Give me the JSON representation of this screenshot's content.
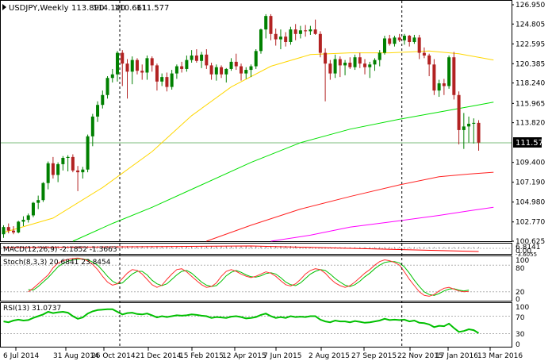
{
  "chart_data": {
    "type": "candlestick",
    "header": {
      "symbol": "USDJPY,Weekly",
      "open": "113.890",
      "high": "114.140",
      "low": "110.661",
      "close": "111.577"
    },
    "price_panel": {
      "yticks": [
        "126.950",
        "124.805",
        "122.595",
        "120.385",
        "118.240",
        "115.965",
        "113.820",
        "111.577",
        "109.400",
        "107.190",
        "104.980",
        "102.770",
        "100.625"
      ],
      "ylim": [
        100.625,
        126.95
      ],
      "current_price_label": "111.577",
      "current_price": 111.577,
      "colors": {
        "bull": "#008000",
        "bear": "#b22222",
        "ma_fast": "#ffd700",
        "ma_mid": "#00e000",
        "ma_slow": "#ff2020",
        "ma_long": "#ff00ff",
        "price_line": "#7dbe7d"
      },
      "candles": [
        [
          101.4,
          102.4,
          101.0,
          102.2
        ],
        [
          102.2,
          102.6,
          101.5,
          101.8
        ],
        [
          101.8,
          102.3,
          101.4,
          101.6
        ],
        [
          101.6,
          102.9,
          101.5,
          102.8
        ],
        [
          102.8,
          103.4,
          102.3,
          103.0
        ],
        [
          103.0,
          103.7,
          102.7,
          103.5
        ],
        [
          103.5,
          105.0,
          103.3,
          104.9
        ],
        [
          104.9,
          105.7,
          104.2,
          105.2
        ],
        [
          105.2,
          107.2,
          105.0,
          107.1
        ],
        [
          107.1,
          109.5,
          106.4,
          109.3
        ],
        [
          109.3,
          110.0,
          107.6,
          108.0
        ],
        [
          108.0,
          109.4,
          107.2,
          109.2
        ],
        [
          109.2,
          110.1,
          108.5,
          109.9
        ],
        [
          109.9,
          110.2,
          108.4,
          110.0
        ],
        [
          110.0,
          110.3,
          108.3,
          108.5
        ],
        [
          108.5,
          109.0,
          106.2,
          108.3
        ],
        [
          108.3,
          108.9,
          107.6,
          108.6
        ],
        [
          108.6,
          112.5,
          108.3,
          112.3
        ],
        [
          112.3,
          114.8,
          111.2,
          114.5
        ],
        [
          114.5,
          116.2,
          113.9,
          115.8
        ],
        [
          115.8,
          117.4,
          115.4,
          116.9
        ],
        [
          116.9,
          119.0,
          116.5,
          118.8
        ],
        [
          118.8,
          119.8,
          118.3,
          119.2
        ],
        [
          119.2,
          121.8,
          118.4,
          121.6
        ],
        [
          121.6,
          121.9,
          117.9,
          120.4
        ],
        [
          120.4,
          120.9,
          116.5,
          119.5
        ],
        [
          119.5,
          121.2,
          118.1,
          120.8
        ],
        [
          120.8,
          121.0,
          119.2,
          119.6
        ],
        [
          119.6,
          120.3,
          118.6,
          119.4
        ],
        [
          119.4,
          121.3,
          118.6,
          121.0
        ],
        [
          121.0,
          121.2,
          119.5,
          120.2
        ],
        [
          120.2,
          120.4,
          117.4,
          118.4
        ],
        [
          118.4,
          119.3,
          117.9,
          118.9
        ],
        [
          118.9,
          119.4,
          117.3,
          117.8
        ],
        [
          117.8,
          119.7,
          117.5,
          119.3
        ],
        [
          119.3,
          120.3,
          118.7,
          120.1
        ],
        [
          120.1,
          120.6,
          119.4,
          119.8
        ],
        [
          119.8,
          121.3,
          119.5,
          120.8
        ],
        [
          120.8,
          121.9,
          120.5,
          121.3
        ],
        [
          121.3,
          122.0,
          120.5,
          120.7
        ],
        [
          120.7,
          121.7,
          119.9,
          121.4
        ],
        [
          121.4,
          122.0,
          119.8,
          120.2
        ],
        [
          120.2,
          120.5,
          118.6,
          119.2
        ],
        [
          119.2,
          120.3,
          118.5,
          120.0
        ],
        [
          120.0,
          120.2,
          118.8,
          119.2
        ],
        [
          119.2,
          119.9,
          118.3,
          119.8
        ],
        [
          119.8,
          121.0,
          119.6,
          120.6
        ],
        [
          120.6,
          121.5,
          119.7,
          120.1
        ],
        [
          120.1,
          120.4,
          118.5,
          119.3
        ],
        [
          119.3,
          120.0,
          118.7,
          119.7
        ],
        [
          119.7,
          120.3,
          118.9,
          120.1
        ],
        [
          120.1,
          122.0,
          119.8,
          121.8
        ],
        [
          121.8,
          124.3,
          121.5,
          124.2
        ],
        [
          124.2,
          125.9,
          123.2,
          125.7
        ],
        [
          125.7,
          125.9,
          123.0,
          123.7
        ],
        [
          123.7,
          124.3,
          122.4,
          123.1
        ],
        [
          123.1,
          124.2,
          122.0,
          123.4
        ],
        [
          123.4,
          123.9,
          122.3,
          122.8
        ],
        [
          122.8,
          124.5,
          122.5,
          124.2
        ],
        [
          124.2,
          124.8,
          123.0,
          123.7
        ],
        [
          123.7,
          124.6,
          123.2,
          124.1
        ],
        [
          124.1,
          124.7,
          123.4,
          124.0
        ],
        [
          124.0,
          124.6,
          123.6,
          124.2
        ],
        [
          124.2,
          125.3,
          123.6,
          123.7
        ],
        [
          123.7,
          124.0,
          121.1,
          121.6
        ],
        [
          121.6,
          122.1,
          116.2,
          120.4
        ],
        [
          120.4,
          120.8,
          118.6,
          119.3
        ],
        [
          119.3,
          121.4,
          118.8,
          120.9
        ],
        [
          120.9,
          121.2,
          118.9,
          120.2
        ],
        [
          120.2,
          120.8,
          119.1,
          120.5
        ],
        [
          120.5,
          121.1,
          119.8,
          120.0
        ],
        [
          120.0,
          121.4,
          119.7,
          121.1
        ],
        [
          121.1,
          121.6,
          119.9,
          120.4
        ],
        [
          120.4,
          120.9,
          119.2,
          120.0
        ],
        [
          120.0,
          120.6,
          118.8,
          120.3
        ],
        [
          120.3,
          121.0,
          119.6,
          120.8
        ],
        [
          120.8,
          121.9,
          120.1,
          121.6
        ],
        [
          121.6,
          123.5,
          121.4,
          123.2
        ],
        [
          123.2,
          123.6,
          122.4,
          122.6
        ],
        [
          122.6,
          123.5,
          122.3,
          123.3
        ],
        [
          123.3,
          123.7,
          122.8,
          123.0
        ],
        [
          123.0,
          123.7,
          122.5,
          123.5
        ],
        [
          123.5,
          123.6,
          122.3,
          122.8
        ],
        [
          122.8,
          123.6,
          122.6,
          123.3
        ],
        [
          123.3,
          123.6,
          120.9,
          121.6
        ],
        [
          121.6,
          122.2,
          121.0,
          121.3
        ],
        [
          121.3,
          121.5,
          119.0,
          120.3
        ],
        [
          120.3,
          120.9,
          116.9,
          117.4
        ],
        [
          117.4,
          118.6,
          116.7,
          118.2
        ],
        [
          118.2,
          118.7,
          116.9,
          117.9
        ],
        [
          117.9,
          121.3,
          117.6,
          121.1
        ],
        [
          121.1,
          121.7,
          116.4,
          116.9
        ],
        [
          116.9,
          117.3,
          111.4,
          113.0
        ],
        [
          113.0,
          114.9,
          110.9,
          113.4
        ],
        [
          113.4,
          114.5,
          111.6,
          113.7
        ],
        [
          113.7,
          114.3,
          111.5,
          113.8
        ],
        [
          113.8,
          114.1,
          110.7,
          111.6
        ]
      ],
      "ma_fast": [
        [
          0,
          101.6
        ],
        [
          10,
          103.2
        ],
        [
          20,
          106.6
        ],
        [
          30,
          110.6
        ],
        [
          38,
          114.6
        ],
        [
          46,
          117.8
        ],
        [
          54,
          120.1
        ],
        [
          62,
          121.4
        ],
        [
          70,
          121.6
        ],
        [
          78,
          121.6
        ],
        [
          86,
          121.8
        ],
        [
          92,
          121.5
        ],
        [
          99,
          120.8
        ]
      ],
      "ma_mid": [
        [
          14,
          100.625
        ],
        [
          22,
          102.6
        ],
        [
          30,
          104.4
        ],
        [
          40,
          106.9
        ],
        [
          50,
          109.4
        ],
        [
          60,
          111.6
        ],
        [
          70,
          113.1
        ],
        [
          80,
          114.2
        ],
        [
          88,
          115.0
        ],
        [
          94,
          115.6
        ],
        [
          99,
          116.1
        ]
      ],
      "ma_slow": [
        [
          41,
          100.625
        ],
        [
          50,
          102.4
        ],
        [
          60,
          104.2
        ],
        [
          70,
          105.6
        ],
        [
          80,
          106.9
        ],
        [
          88,
          107.8
        ],
        [
          94,
          108.1
        ],
        [
          99,
          108.3
        ]
      ],
      "ma_long": [
        [
          54,
          100.625
        ],
        [
          62,
          101.3
        ],
        [
          70,
          102.2
        ],
        [
          80,
          102.9
        ],
        [
          88,
          103.5
        ],
        [
          94,
          104.0
        ],
        [
          99,
          104.4
        ]
      ]
    },
    "macd_panel": {
      "label": "MACD(12,26,9) -2.1852 -1.3663",
      "yticks": [
        "6.8141",
        "0.00",
        "-3.6055"
      ]
    },
    "stoch_panel": {
      "label": "Stoch(8,3,3) 20.6841 23.8454",
      "yticks": [
        "100",
        "80",
        "20",
        "0"
      ],
      "ylim": [
        0,
        100
      ],
      "k_color": "#ff3030",
      "d_color": "#00c000",
      "k": [
        20,
        28,
        38,
        48,
        58,
        74,
        85,
        90,
        93,
        95,
        96,
        94,
        90,
        82,
        70,
        55,
        42,
        35,
        38,
        50,
        62,
        70,
        68,
        60,
        48,
        36,
        30,
        35,
        48,
        60,
        70,
        72,
        65,
        55,
        45,
        36,
        30,
        32,
        40,
        55,
        66,
        70,
        66,
        60,
        55,
        52,
        55,
        60,
        65,
        62,
        55,
        45,
        36,
        33,
        38,
        48,
        60,
        68,
        72,
        70,
        62,
        50,
        40,
        34,
        30,
        34,
        42,
        52,
        62,
        70,
        80,
        88,
        92,
        90,
        86,
        80,
        65,
        48,
        34,
        20,
        12,
        10,
        14,
        22,
        28,
        30,
        26,
        22,
        20,
        21
      ],
      "d": [
        25,
        24,
        32,
        42,
        52,
        64,
        76,
        84,
        89,
        92,
        94,
        94,
        92,
        87,
        80,
        68,
        55,
        44,
        38,
        40,
        50,
        60,
        66,
        66,
        58,
        46,
        38,
        34,
        38,
        48,
        58,
        66,
        68,
        62,
        52,
        42,
        35,
        32,
        34,
        44,
        56,
        64,
        68,
        64,
        58,
        54,
        53,
        56,
        61,
        63,
        60,
        52,
        42,
        36,
        34,
        40,
        50,
        60,
        66,
        70,
        68,
        60,
        50,
        42,
        35,
        32,
        36,
        44,
        54,
        62,
        72,
        80,
        86,
        88,
        88,
        85,
        76,
        62,
        46,
        32,
        20,
        14,
        12,
        16,
        22,
        26,
        27,
        24,
        22,
        24
      ]
    },
    "rsi_panel": {
      "label": "RSI(13) 31.0737",
      "yticks": [
        "100",
        "70",
        "30",
        "0"
      ],
      "ylim": [
        0,
        100
      ],
      "color": "#00c000",
      "values": [
        58,
        56,
        60,
        62,
        60,
        61,
        66,
        70,
        74,
        80,
        77,
        79,
        80,
        78,
        70,
        64,
        67,
        76,
        81,
        84,
        85,
        86,
        86,
        80,
        74,
        77,
        78,
        75,
        74,
        76,
        72,
        67,
        70,
        68,
        70,
        72,
        71,
        72,
        74,
        73,
        71,
        70,
        66,
        68,
        67,
        66,
        69,
        70,
        68,
        65,
        66,
        68,
        73,
        76,
        70,
        66,
        68,
        66,
        70,
        68,
        69,
        68,
        70,
        70,
        62,
        58,
        56,
        60,
        58,
        58,
        56,
        59,
        57,
        55,
        56,
        58,
        60,
        64,
        61,
        62,
        61,
        62,
        58,
        60,
        55,
        54,
        51,
        45,
        48,
        47,
        53,
        43,
        34,
        36,
        40,
        38,
        31
      ]
    },
    "x_labels": [
      "6 Jul 2014",
      "31 Aug 2014",
      "26 Oct 2014",
      "21 Dec 2014",
      "15 Feb 2015",
      "12 Apr 2015",
      "7 Jun 2015",
      "2 Aug 2015",
      "27 Sep 2015",
      "22 Nov 2015",
      "17 Jan 2016",
      "13 Mar 2016"
    ],
    "x_label_index": [
      0,
      8,
      16,
      24,
      32,
      40,
      48,
      56,
      64,
      72,
      80,
      88
    ],
    "x_label_x": [
      20,
      83,
      131,
      187,
      242,
      296,
      348,
      405,
      459,
      517,
      565,
      618
    ],
    "vertical_markers_index": [
      23,
      80
    ]
  }
}
